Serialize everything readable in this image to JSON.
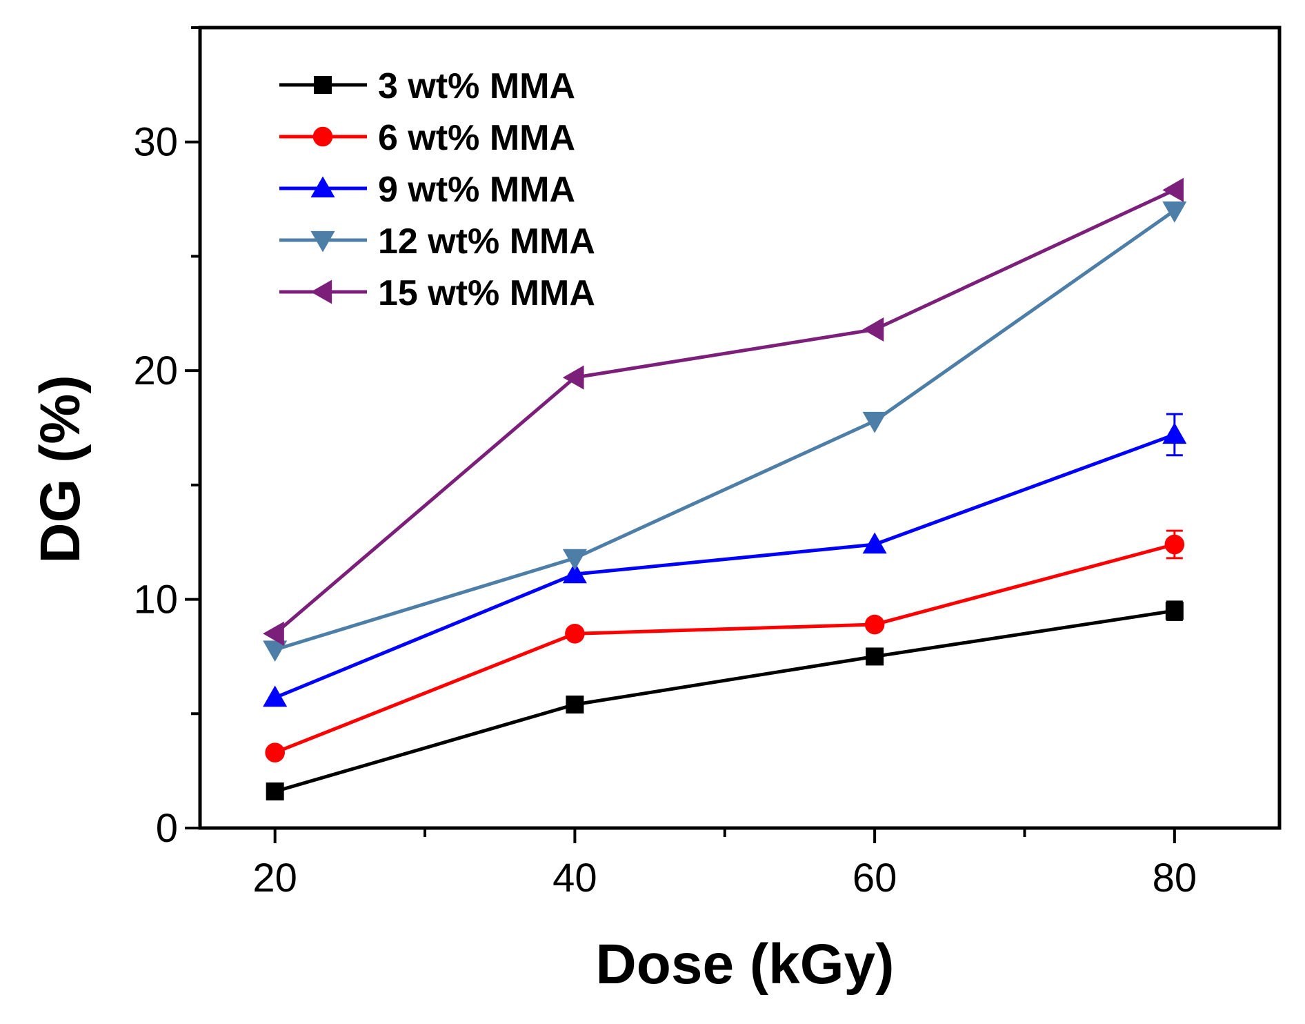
{
  "chart_data": {
    "type": "line",
    "title": "",
    "xlabel": "Dose (kGy)",
    "ylabel": "DG (%)",
    "x": [
      20,
      40,
      60,
      80
    ],
    "xlim": [
      15,
      87
    ],
    "ylim": [
      0,
      35
    ],
    "xticks": [
      20,
      40,
      60,
      80
    ],
    "yticks": [
      0,
      10,
      20,
      30
    ],
    "grid": false,
    "legend_position": "top-left",
    "series": [
      {
        "name": "3 wt% MMA",
        "color": "#000000",
        "marker": "square",
        "values": [
          1.6,
          5.4,
          7.5,
          9.5
        ],
        "errors": [
          0,
          0.2,
          0,
          0.4
        ]
      },
      {
        "name": "6 wt% MMA",
        "color": "#ff0000",
        "marker": "circle",
        "values": [
          3.3,
          8.5,
          8.9,
          12.4
        ],
        "errors": [
          0,
          0,
          0,
          0.6
        ]
      },
      {
        "name": "9 wt% MMA",
        "color": "#0000ff",
        "marker": "triangle-up",
        "values": [
          5.7,
          11.1,
          12.4,
          17.2
        ],
        "errors": [
          0,
          0,
          0,
          0.9
        ]
      },
      {
        "name": "12 wt% MMA",
        "color": "#4d7ea8",
        "marker": "triangle-down",
        "values": [
          7.8,
          11.8,
          17.8,
          27.0
        ],
        "errors": [
          0,
          0,
          0,
          0
        ]
      },
      {
        "name": "15 wt% MMA",
        "color": "#7b1f7b",
        "marker": "triangle-left",
        "values": [
          8.5,
          19.7,
          21.8,
          27.9
        ],
        "errors": [
          0,
          0,
          0,
          0
        ]
      }
    ]
  }
}
